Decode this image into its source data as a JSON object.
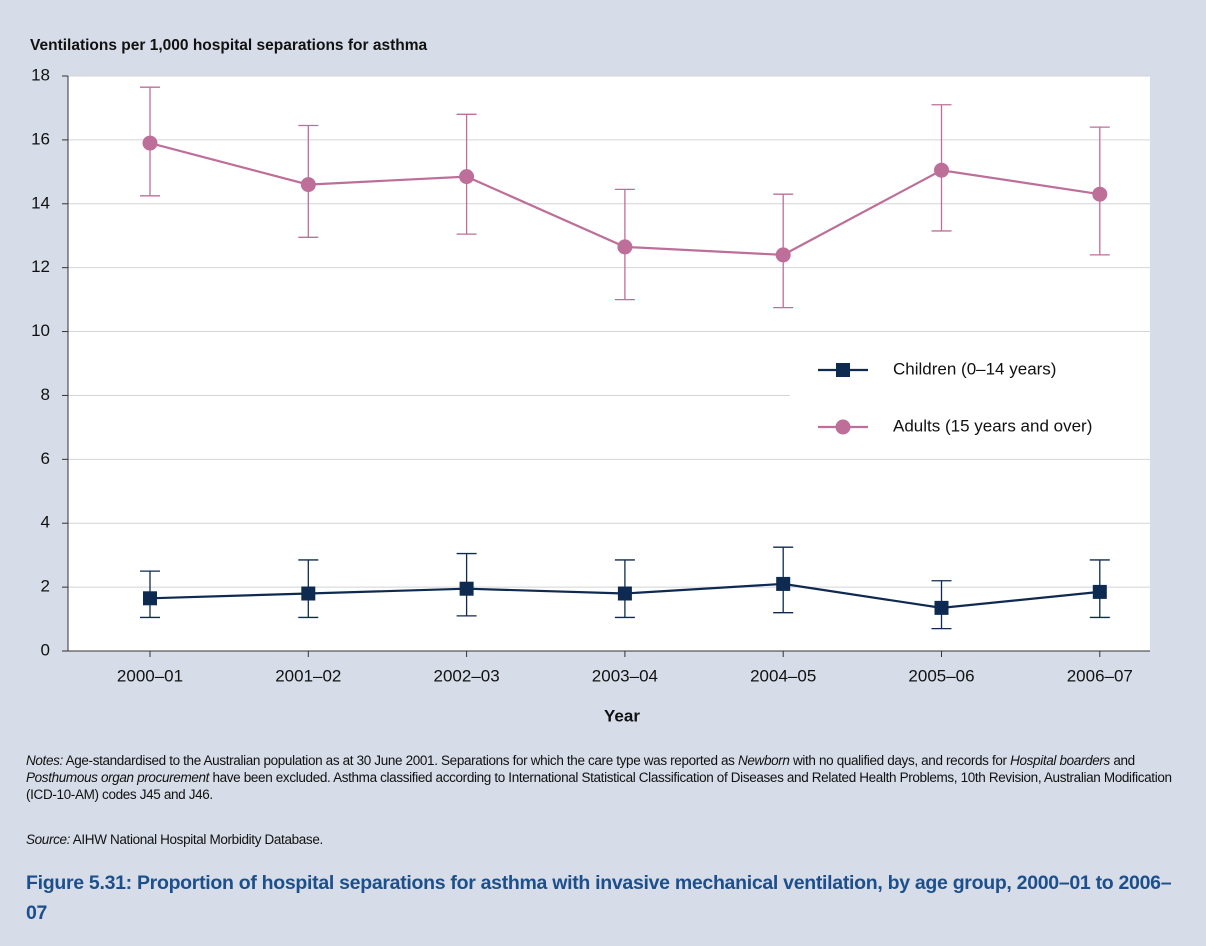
{
  "chart_data": {
    "type": "line",
    "y_label": "Ventilations per 1,000 hospital separations for asthma",
    "x_label": "Year",
    "categories": [
      "2000–01",
      "2001–02",
      "2002–03",
      "2003–04",
      "2004–05",
      "2005–06",
      "2006–07"
    ],
    "series": [
      {
        "name": "Children (0–14 years)",
        "color": "#0f2a50",
        "marker": "square",
        "values": [
          1.65,
          1.8,
          1.95,
          1.8,
          2.1,
          1.35,
          1.85
        ],
        "ci_low": [
          1.05,
          1.05,
          1.1,
          1.05,
          1.2,
          0.7,
          1.05
        ],
        "ci_high": [
          2.5,
          2.85,
          3.05,
          2.85,
          3.25,
          2.2,
          2.85
        ]
      },
      {
        "name": "Adults (15 years and over)",
        "color": "#bd6f99",
        "marker": "circle",
        "values": [
          15.9,
          14.6,
          14.85,
          12.65,
          12.4,
          15.05,
          14.3
        ],
        "ci_low": [
          14.25,
          12.95,
          13.05,
          11.0,
          10.75,
          13.15,
          12.4
        ],
        "ci_high": [
          17.65,
          16.45,
          16.8,
          14.45,
          14.3,
          17.1,
          16.4
        ]
      }
    ],
    "ylim": [
      0,
      18
    ],
    "yticks": [
      0,
      2,
      4,
      6,
      8,
      10,
      12,
      14,
      16,
      18
    ],
    "grid": true,
    "legend": "right"
  },
  "notes": [
    {
      "text": "Notes:",
      "italic": true
    },
    {
      "text": " Age-standardised to the Australian population as at 30 June 2001. Separations for which the care type was reported as ",
      "italic": false
    },
    {
      "text": "Newborn",
      "italic": true
    },
    {
      "text": " with no qualified days, and records for ",
      "italic": false
    },
    {
      "text": "Hospital boarders",
      "italic": true
    },
    {
      "text": " and ",
      "italic": false
    },
    {
      "text": "Posthumous organ procurement",
      "italic": true
    },
    {
      "text": " have been excluded. Asthma classified according to International Statistical Classification of Diseases and Related Health Problems, 10th Revision, Australian Modification (ICD-10-AM) codes J45 and J46.",
      "italic": false
    }
  ],
  "source": [
    {
      "text": "Source:",
      "italic": true
    },
    {
      "text": " AIHW National Hospital Morbidity Database.",
      "italic": false
    }
  ],
  "caption": "Figure 5.31: Proportion of hospital separations for asthma with invasive mechanical ventilation, by age group, 2000–01 to 2006–07"
}
